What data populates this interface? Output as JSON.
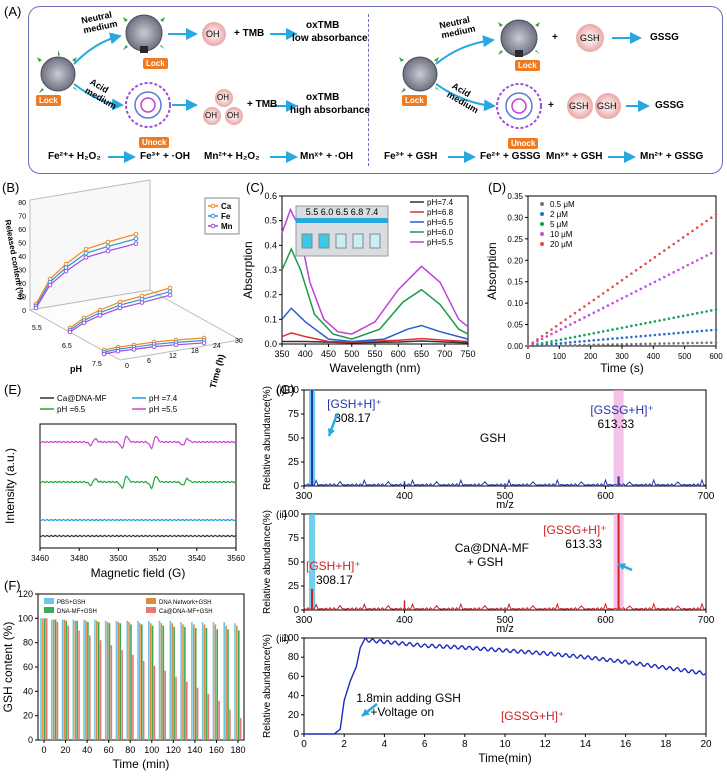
{
  "panels": {
    "A": "(A)",
    "B": "(B)",
    "C": "(C)",
    "D": "(D)",
    "E": "(E)",
    "F": "(F)",
    "G": "(G)"
  },
  "panelA": {
    "left": {
      "neutral_medium": "Neutral\nmedium",
      "acid_medium": "Acid\nmedium",
      "lock": "Lock",
      "unlock": "Unock",
      "oh": "OH",
      "plus_tmb": "+ TMB",
      "oxtmb_low": "oxTMB",
      "low_abs": "low absorbance",
      "oxtmb_high": "oxTMB",
      "high_abs": "high absorbance",
      "eq1": "Fe²⁺+ H₂O₂",
      "eq1_prod": "Fe³⁺ + ·OH",
      "eq2": "Mn²⁺+ H₂O₂",
      "eq2_prod": "Mnˣ⁺ + ·OH"
    },
    "right": {
      "neutral_medium": "Neutral\nmedium",
      "acid_medium": "Acid\nmedium",
      "lock": "Lock",
      "unlock": "Unock",
      "gsh": "GSH",
      "plus": "+",
      "gssg": "GSSG",
      "eq1": "Fe³⁺ + GSH",
      "eq1_prod": "Fe²⁺ + GSSG",
      "eq2": "Mnˣ⁺ + GSH",
      "eq2_prod": "Mn²⁺ + GSSG"
    }
  },
  "chart_data": [
    {
      "id": "B",
      "type": "line",
      "title": "",
      "ylabel": "Released content (%)",
      "xlabel": "Time (h)",
      "zlabel": "pH",
      "pH_ticks": [
        "5.5",
        "6.5",
        "7.5"
      ],
      "time_ticks": [
        "0",
        "6",
        "12",
        "18",
        "24",
        "30"
      ],
      "y_ticks": [
        "0",
        "10",
        "20",
        "30",
        "40",
        "50",
        "60",
        "70",
        "80"
      ],
      "legend": [
        {
          "name": "Ca",
          "color": "#f08a24"
        },
        {
          "name": "Fe",
          "color": "#3b8fd9"
        },
        {
          "name": "Mn",
          "color": "#9b4fd8"
        }
      ]
    },
    {
      "id": "C",
      "type": "line",
      "xlabel": "Wavelength (nm)",
      "ylabel": "Absorption",
      "xlim": [
        350,
        750
      ],
      "ylim": [
        0,
        0.6
      ],
      "x_ticks": [
        350,
        400,
        450,
        500,
        550,
        600,
        650,
        700,
        750
      ],
      "y_ticks": [
        "0.0",
        "0.1",
        "0.2",
        "0.3",
        "0.4",
        "0.5",
        "0.6"
      ],
      "inset_labels": "5.5 6.0  6.5  6.8  7.4",
      "series": [
        {
          "name": "pH=7.4",
          "color": "#333333",
          "points": [
            [
              350,
              0.01
            ],
            [
              370,
              0.01
            ],
            [
              400,
              0.01
            ],
            [
              500,
              0.005
            ],
            [
              600,
              0.008
            ],
            [
              650,
              0.012
            ],
            [
              700,
              0.008
            ],
            [
              750,
              0.005
            ]
          ]
        },
        {
          "name": "pH=6.8",
          "color": "#e03030",
          "points": [
            [
              350,
              0.03
            ],
            [
              370,
              0.045
            ],
            [
              400,
              0.03
            ],
            [
              450,
              0.01
            ],
            [
              500,
              0.008
            ],
            [
              600,
              0.015
            ],
            [
              650,
              0.022
            ],
            [
              700,
              0.015
            ],
            [
              750,
              0.01
            ]
          ]
        },
        {
          "name": "pH=6.5",
          "color": "#2a5fd0",
          "points": [
            [
              350,
              0.1
            ],
            [
              370,
              0.145
            ],
            [
              400,
              0.09
            ],
            [
              450,
              0.02
            ],
            [
              500,
              0.01
            ],
            [
              570,
              0.02
            ],
            [
              620,
              0.06
            ],
            [
              650,
              0.075
            ],
            [
              690,
              0.05
            ],
            [
              750,
              0.02
            ]
          ]
        },
        {
          "name": "pH=6.0",
          "color": "#1a9a4a",
          "points": [
            [
              350,
              0.3
            ],
            [
              370,
              0.385
            ],
            [
              390,
              0.3
            ],
            [
              420,
              0.12
            ],
            [
              460,
              0.04
            ],
            [
              500,
              0.02
            ],
            [
              560,
              0.06
            ],
            [
              610,
              0.17
            ],
            [
              650,
              0.22
            ],
            [
              690,
              0.16
            ],
            [
              730,
              0.06
            ],
            [
              750,
              0.04
            ]
          ]
        },
        {
          "name": "pH=5.5",
          "color": "#c040d8",
          "points": [
            [
              350,
              0.45
            ],
            [
              368,
              0.545
            ],
            [
              385,
              0.48
            ],
            [
              410,
              0.25
            ],
            [
              440,
              0.1
            ],
            [
              470,
              0.05
            ],
            [
              500,
              0.04
            ],
            [
              550,
              0.09
            ],
            [
              600,
              0.22
            ],
            [
              650,
              0.315
            ],
            [
              690,
              0.25
            ],
            [
              730,
              0.1
            ],
            [
              750,
              0.07
            ]
          ]
        }
      ]
    },
    {
      "id": "D",
      "type": "scatter",
      "xlabel": "Time (s)",
      "ylabel": "Absorption",
      "xlim": [
        0,
        600
      ],
      "ylim": [
        0,
        0.35
      ],
      "x_ticks": [
        0,
        100,
        200,
        300,
        400,
        500,
        600
      ],
      "y_ticks": [
        "0.00",
        "0.05",
        "0.10",
        "0.15",
        "0.20",
        "0.25",
        "0.30",
        "0.35"
      ],
      "series": [
        {
          "name": "0.5 μM",
          "color": "#777777",
          "end": 0.008
        },
        {
          "name": "2 μM",
          "color": "#2a6fd0",
          "end": 0.038
        },
        {
          "name": "5 μM",
          "color": "#1aa05a",
          "end": 0.085
        },
        {
          "name": "10 μM",
          "color": "#c050e0",
          "end": 0.222
        },
        {
          "name": "20 μM",
          "color": "#e84a4a",
          "end": 0.307
        }
      ]
    },
    {
      "id": "E",
      "type": "line",
      "xlabel": "Magnetic field (G)",
      "ylabel": "Intensity (a.u.)",
      "xlim": [
        3460,
        3560
      ],
      "x_ticks": [
        3460,
        3480,
        3500,
        3520,
        3540,
        3560
      ],
      "legend": [
        {
          "name": "Ca@DNA-MF",
          "color": "#333333"
        },
        {
          "name": "pH =7.4",
          "color": "#1aa0d8"
        },
        {
          "name": "pH =6.5",
          "color": "#1aaa3a"
        },
        {
          "name": "pH =5.5",
          "color": "#cc44cc"
        }
      ]
    },
    {
      "id": "F",
      "type": "bar",
      "xlabel": "Time (min)",
      "ylabel": "GSH content (%)",
      "xlim": [
        0,
        180
      ],
      "ylim": [
        0,
        120
      ],
      "x_ticks": [
        0,
        20,
        40,
        60,
        80,
        100,
        120,
        140,
        160,
        180
      ],
      "y_ticks": [
        0,
        20,
        40,
        60,
        80,
        100,
        120
      ],
      "categories": [
        0,
        10,
        20,
        30,
        40,
        50,
        60,
        70,
        80,
        90,
        100,
        110,
        120,
        130,
        140,
        150,
        160,
        170,
        180
      ],
      "series": [
        {
          "name": "PBS+GSH",
          "color": "#6ec6e6",
          "values": [
            100,
            99,
            99,
            99,
            99,
            99,
            98,
            98,
            98,
            98,
            98,
            98,
            98,
            97,
            97,
            97,
            97,
            97,
            96
          ]
        },
        {
          "name": "DNA Network+GSH",
          "color": "#e08a40",
          "values": [
            100,
            99,
            99,
            98,
            98,
            98,
            97,
            97,
            97,
            96,
            96,
            96,
            96,
            95,
            95,
            95,
            95,
            94,
            94
          ]
        },
        {
          "name": "DNA-MF+GSH",
          "color": "#3aaa5a",
          "values": [
            100,
            99,
            98,
            98,
            97,
            97,
            96,
            96,
            95,
            95,
            94,
            94,
            93,
            93,
            92,
            92,
            91,
            91,
            90
          ]
        },
        {
          "name": "Ca@DNA-MF+GSH",
          "color": "#e87878",
          "values": [
            100,
            97,
            94,
            90,
            86,
            82,
            78,
            74,
            70,
            65,
            61,
            57,
            52,
            48,
            43,
            38,
            32,
            25,
            18
          ]
        }
      ]
    },
    {
      "id": "G-i",
      "type": "bar",
      "xlabel": "m/z",
      "ylabel": "Relative abundance(%)",
      "xlim": [
        300,
        700
      ],
      "ylim": [
        0,
        100
      ],
      "x_ticks": [
        300,
        400,
        500,
        600,
        700
      ],
      "y_ticks": [
        0,
        25,
        50,
        75,
        100
      ],
      "annotations": [
        "[GSH+H]⁺",
        "308.17",
        "GSH",
        "[GSSG+H]⁺",
        "613.33"
      ]
    },
    {
      "id": "G-ii",
      "type": "bar",
      "xlabel": "m/z",
      "ylabel": "Relative abundance(%)",
      "xlim": [
        300,
        700
      ],
      "ylim": [
        0,
        100
      ],
      "x_ticks": [
        300,
        400,
        500,
        600,
        700
      ],
      "y_ticks": [
        0,
        25,
        50,
        75,
        100
      ],
      "annotations": [
        "[GSH+H]⁺",
        "308.17",
        "Ca@DNA-MF",
        "+ GSH",
        "[GSSG+H]⁺",
        "613.33"
      ]
    },
    {
      "id": "G-iii",
      "type": "line",
      "xlabel": "Time(min)",
      "ylabel": "Relative abundance(%)",
      "xlim": [
        0,
        20
      ],
      "ylim": [
        0,
        100
      ],
      "x_ticks": [
        0,
        2,
        4,
        6,
        8,
        10,
        12,
        14,
        16,
        18,
        20
      ],
      "y_ticks": [
        0,
        20,
        40,
        60,
        80,
        100
      ],
      "annotations": [
        "1.8min adding GSH",
        "+Voltage on",
        "[GSSG+H]⁺"
      ],
      "points": [
        [
          0,
          0
        ],
        [
          1.5,
          0
        ],
        [
          1.8,
          5
        ],
        [
          2.0,
          35
        ],
        [
          2.3,
          55
        ],
        [
          2.6,
          70
        ],
        [
          2.8,
          90
        ],
        [
          3.0,
          98
        ],
        [
          4,
          96
        ],
        [
          6,
          92
        ],
        [
          8,
          90
        ],
        [
          10,
          87
        ],
        [
          12,
          84
        ],
        [
          14,
          80
        ],
        [
          16,
          75
        ],
        [
          18,
          69
        ],
        [
          20,
          63
        ]
      ]
    }
  ],
  "G_sub": {
    "i": "(i)",
    "ii": "(ii)",
    "iii": "(iii)"
  }
}
